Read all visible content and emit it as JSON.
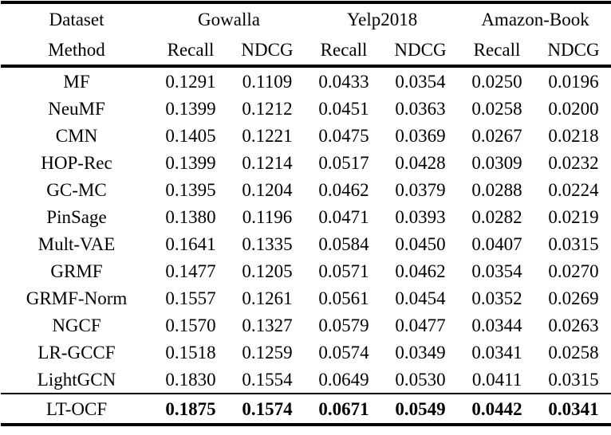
{
  "table": {
    "header": {
      "dataset_label": "Dataset",
      "method_label": "Method",
      "groups": [
        "Gowalla",
        "Yelp2018",
        "Amazon-Book"
      ],
      "metrics": [
        "Recall",
        "NDCG",
        "Recall",
        "NDCG",
        "Recall",
        "NDCG"
      ]
    },
    "rows": [
      {
        "method": "MF",
        "values": [
          "0.1291",
          "0.1109",
          "0.0433",
          "0.0354",
          "0.0250",
          "0.0196"
        ],
        "emphasized": false
      },
      {
        "method": "NeuMF",
        "values": [
          "0.1399",
          "0.1212",
          "0.0451",
          "0.0363",
          "0.0258",
          "0.0200"
        ],
        "emphasized": false
      },
      {
        "method": "CMN",
        "values": [
          "0.1405",
          "0.1221",
          "0.0475",
          "0.0369",
          "0.0267",
          "0.0218"
        ],
        "emphasized": false
      },
      {
        "method": "HOP-Rec",
        "values": [
          "0.1399",
          "0.1214",
          "0.0517",
          "0.0428",
          "0.0309",
          "0.0232"
        ],
        "emphasized": false
      },
      {
        "method": "GC-MC",
        "values": [
          "0.1395",
          "0.1204",
          "0.0462",
          "0.0379",
          "0.0288",
          "0.0224"
        ],
        "emphasized": false
      },
      {
        "method": "PinSage",
        "values": [
          "0.1380",
          "0.1196",
          "0.0471",
          "0.0393",
          "0.0282",
          "0.0219"
        ],
        "emphasized": false
      },
      {
        "method": "Mult-VAE",
        "values": [
          "0.1641",
          "0.1335",
          "0.0584",
          "0.0450",
          "0.0407",
          "0.0315"
        ],
        "emphasized": false
      },
      {
        "method": "GRMF",
        "values": [
          "0.1477",
          "0.1205",
          "0.0571",
          "0.0462",
          "0.0354",
          "0.0270"
        ],
        "emphasized": false
      },
      {
        "method": "GRMF-Norm",
        "values": [
          "0.1557",
          "0.1261",
          "0.0561",
          "0.0454",
          "0.0352",
          "0.0269"
        ],
        "emphasized": false
      },
      {
        "method": "NGCF",
        "values": [
          "0.1570",
          "0.1327",
          "0.0579",
          "0.0477",
          "0.0344",
          "0.0263"
        ],
        "emphasized": false
      },
      {
        "method": "LR-GCCF",
        "values": [
          "0.1518",
          "0.1259",
          "0.0574",
          "0.0349",
          "0.0341",
          "0.0258"
        ],
        "emphasized": false
      },
      {
        "method": "LightGCN",
        "values": [
          "0.1830",
          "0.1554",
          "0.0649",
          "0.0530",
          "0.0411",
          "0.0315"
        ],
        "emphasized": false
      },
      {
        "method": "LT-OCF",
        "values": [
          "0.1875",
          "0.1574",
          "0.0671",
          "0.0549",
          "0.0442",
          "0.0341"
        ],
        "emphasized": true
      }
    ]
  },
  "colors": {
    "text": "#000000",
    "background": "#ffffff",
    "rule": "#000000"
  }
}
